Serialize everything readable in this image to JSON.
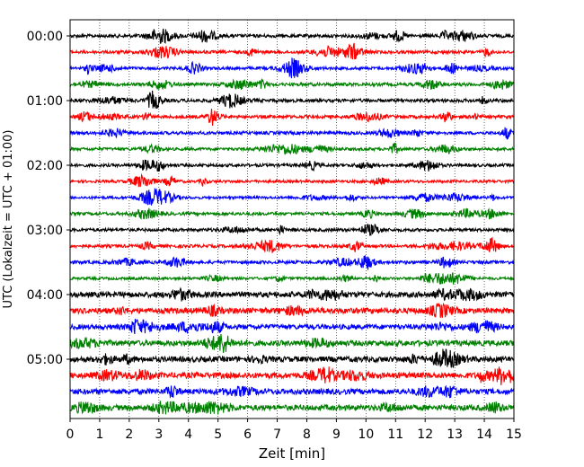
{
  "chart_data": {
    "type": "line",
    "title": "",
    "xlabel": "Zeit  [min]",
    "ylabel": "UTC (Lokalzeit = UTC + 01:00)",
    "xlim": [
      0,
      15
    ],
    "x_ticks": [
      "0",
      "1",
      "2",
      "3",
      "4",
      "5",
      "6",
      "7",
      "8",
      "9",
      "10",
      "11",
      "12",
      "13",
      "14",
      "15"
    ],
    "y_tick_labels": [
      "00:00",
      "01:00",
      "02:00",
      "03:00",
      "04:00",
      "05:00"
    ],
    "grid": "vertical dotted",
    "trace_colors": [
      "#000000",
      "#ff0000",
      "#0000ff",
      "#008000"
    ],
    "trace_count": 24,
    "trace_duration_min": 15,
    "first_trace_start": "00:00",
    "last_trace_start": "05:45"
  }
}
